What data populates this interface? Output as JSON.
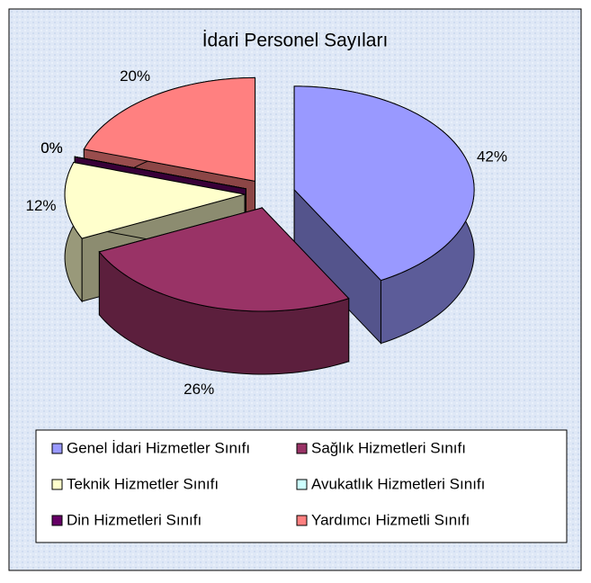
{
  "chart_data": {
    "type": "pie",
    "title": "İdari Personel Sayıları",
    "categories": [
      "Genel İdari Hizmetler Sınıfı",
      "Sağlık Hizmetleri Sınıfı",
      "Teknik Hizmetler Sınıfı",
      "Avukatlık Hizmetleri Sınıfı",
      "Din Hizmetleri Sınıfı",
      "Yardımcı Hizmetli Sınıfı"
    ],
    "values": [
      42,
      26,
      12,
      0,
      0,
      20
    ],
    "value_labels": [
      "42%",
      "26%",
      "12%",
      "0%",
      "0%",
      "20%"
    ],
    "colors": [
      "#9999ff",
      "#993366",
      "#ffffcc",
      "#ccffff",
      "#660066",
      "#ff8080"
    ],
    "legend": "bottom"
  }
}
